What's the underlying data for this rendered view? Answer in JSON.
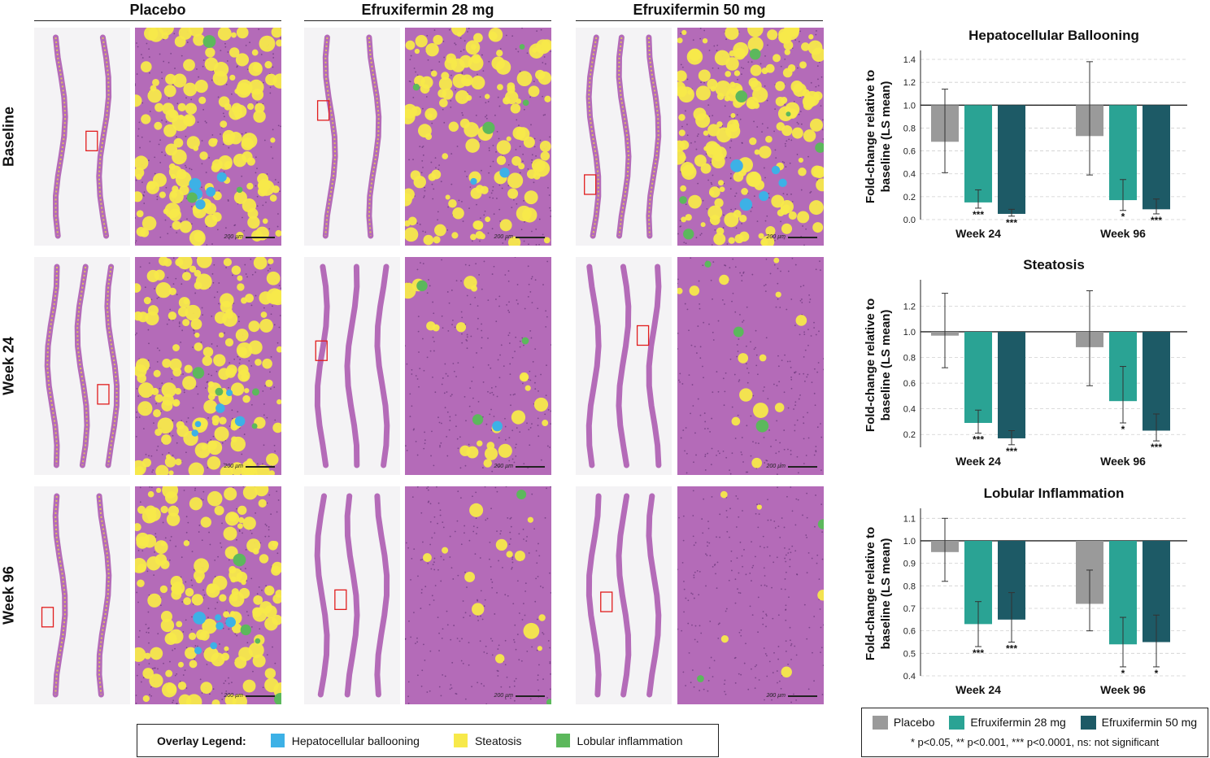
{
  "columns": [
    "Placebo",
    "Efruxifermin 28 mg",
    "Efruxifermin 50 mg"
  ],
  "rows": [
    "Baseline",
    "Week 24",
    "Week 96"
  ],
  "scale_bar_label": "200 µm",
  "overlay_legend": {
    "title": "Overlay Legend:",
    "items": [
      {
        "label": "Hepatocellular ballooning",
        "color": "#3db1e6"
      },
      {
        "label": "Steatosis",
        "color": "#f7e94a"
      },
      {
        "label": "Lobular inflammation",
        "color": "#5cb85c"
      }
    ]
  },
  "colors": {
    "placebo": "#9a9a9a",
    "efx28": "#2aa394",
    "efx50": "#1d5a66",
    "tissue": "#b46bb8",
    "roi_box": "#e11d1d"
  },
  "chart_legend": {
    "items": [
      {
        "label": "Placebo",
        "color": "#9a9a9a"
      },
      {
        "label": "Efruxifermin 28 mg",
        "color": "#2aa394"
      },
      {
        "label": "Efruxifermin 50 mg",
        "color": "#1d5a66"
      }
    ],
    "note": "* p<0.05, ** p<0.001, *** p<0.0001, ns: not significant"
  },
  "chart_data": [
    {
      "type": "bar",
      "title": "Hepatocellular Ballooning",
      "ylabel": "Fold-change relative to baseline (LS mean)",
      "categories": [
        "Week 24",
        "Week 96"
      ],
      "ylim": [
        0,
        1.45
      ],
      "yticks": [
        "0.0",
        "0.2",
        "0.4",
        "0.6",
        "0.8",
        "1.0",
        "1.2",
        "1.4"
      ],
      "baseline": 1.0,
      "grid": true,
      "series": [
        {
          "name": "Placebo",
          "values": [
            0.68,
            0.73
          ],
          "err_low": [
            0.41,
            0.39
          ],
          "err_high": [
            1.14,
            1.38
          ],
          "sig": [
            "",
            ""
          ]
        },
        {
          "name": "Efruxifermin 28 mg",
          "values": [
            0.15,
            0.17
          ],
          "err_low": [
            0.1,
            0.08
          ],
          "err_high": [
            0.26,
            0.35
          ],
          "sig": [
            "***",
            "*"
          ]
        },
        {
          "name": "Efruxifermin 50 mg",
          "values": [
            0.05,
            0.09
          ],
          "err_low": [
            0.03,
            0.05
          ],
          "err_high": [
            0.09,
            0.18
          ],
          "sig": [
            "***",
            "***"
          ]
        }
      ]
    },
    {
      "type": "bar",
      "title": "Steatosis",
      "ylabel": "Fold-change relative to baseline (LS mean)",
      "categories": [
        "Week 24",
        "Week 96"
      ],
      "ylim": [
        0.1,
        1.38
      ],
      "yticks": [
        "0.2",
        "0.4",
        "0.6",
        "0.8",
        "1.0",
        "1.2"
      ],
      "baseline": 1.0,
      "grid": true,
      "series": [
        {
          "name": "Placebo",
          "values": [
            0.97,
            0.88
          ],
          "err_low": [
            0.72,
            0.58
          ],
          "err_high": [
            1.3,
            1.32
          ],
          "sig": [
            "",
            ""
          ]
        },
        {
          "name": "Efruxifermin 28 mg",
          "values": [
            0.29,
            0.46
          ],
          "err_low": [
            0.21,
            0.29
          ],
          "err_high": [
            0.39,
            0.73
          ],
          "sig": [
            "***",
            "*"
          ]
        },
        {
          "name": "Efruxifermin 50 mg",
          "values": [
            0.17,
            0.23
          ],
          "err_low": [
            0.12,
            0.15
          ],
          "err_high": [
            0.23,
            0.36
          ],
          "sig": [
            "***",
            "***"
          ]
        }
      ]
    },
    {
      "type": "bar",
      "title": "Lobular Inflammation",
      "ylabel": "Fold-change relative to baseline (LS mean)",
      "categories": [
        "Week 24",
        "Week 96"
      ],
      "ylim": [
        0.4,
        1.13
      ],
      "yticks": [
        "0.4",
        "0.5",
        "0.6",
        "0.7",
        "0.8",
        "0.9",
        "1.0",
        "1.1"
      ],
      "baseline": 1.0,
      "grid": true,
      "series": [
        {
          "name": "Placebo",
          "values": [
            0.95,
            0.72
          ],
          "err_low": [
            0.82,
            0.6
          ],
          "err_high": [
            1.1,
            0.87
          ],
          "sig": [
            "",
            ""
          ]
        },
        {
          "name": "Efruxifermin 28 mg",
          "values": [
            0.63,
            0.54
          ],
          "err_low": [
            0.53,
            0.44
          ],
          "err_high": [
            0.73,
            0.66
          ],
          "sig": [
            "***",
            "*"
          ]
        },
        {
          "name": "Efruxifermin 50 mg",
          "values": [
            0.65,
            0.55
          ],
          "err_low": [
            0.55,
            0.44
          ],
          "err_high": [
            0.77,
            0.67
          ],
          "sig": [
            "***",
            "*"
          ]
        }
      ]
    }
  ]
}
